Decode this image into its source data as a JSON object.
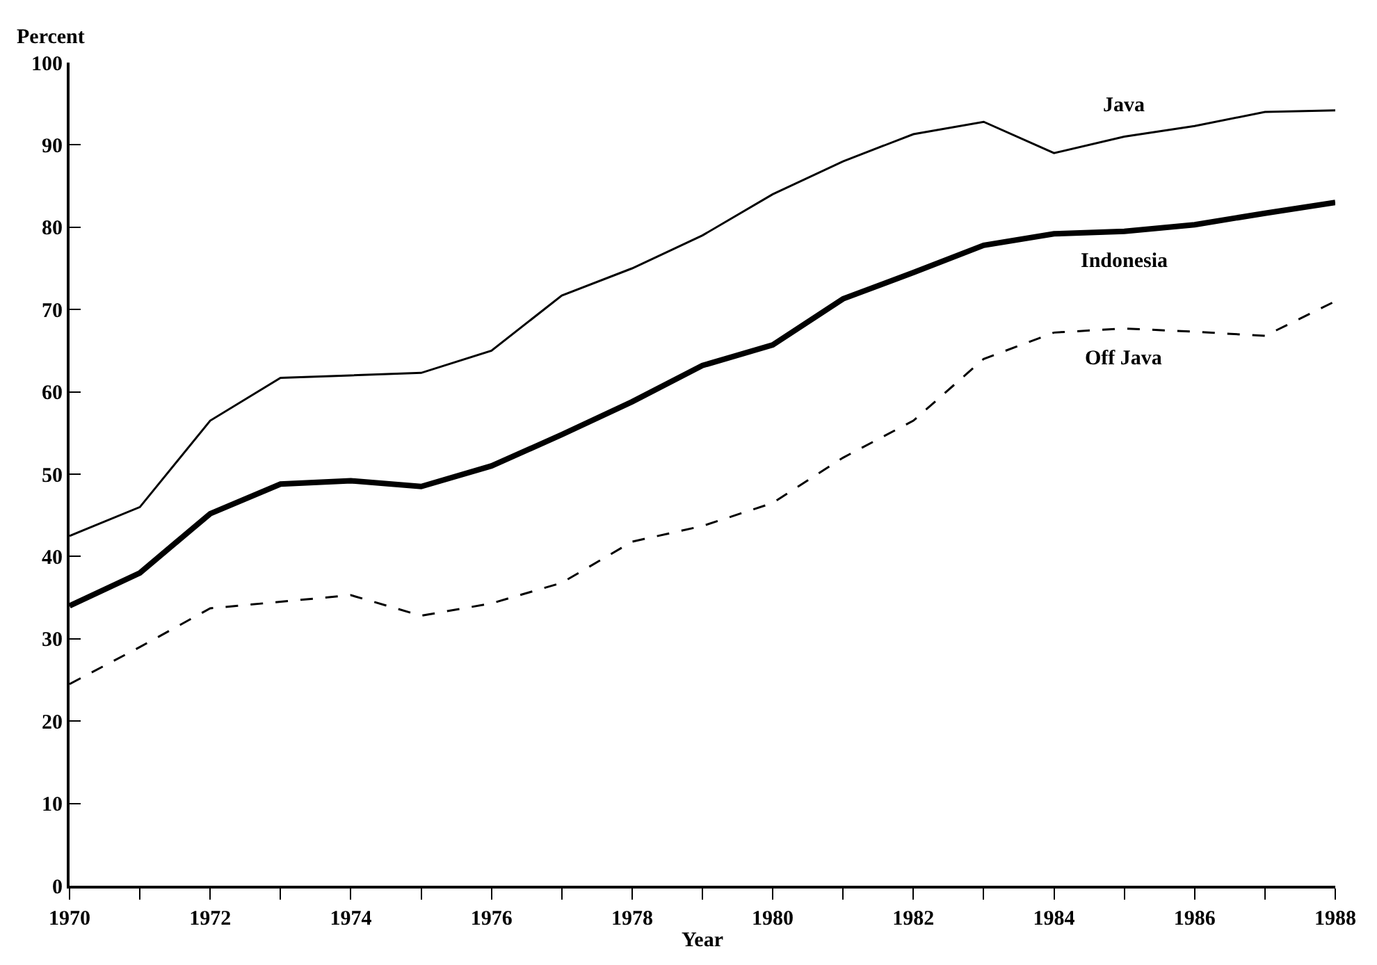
{
  "chart_data": {
    "type": "line",
    "xlabel": "Year",
    "ylabel": "Percent",
    "x": [
      1970,
      1971,
      1972,
      1973,
      1974,
      1975,
      1976,
      1977,
      1978,
      1979,
      1980,
      1981,
      1982,
      1983,
      1984,
      1985,
      1986,
      1987,
      1988
    ],
    "series": [
      {
        "name": "Java",
        "color": "#000000",
        "line_style": "solid",
        "values": [
          42.5,
          46,
          56.5,
          61.7,
          62,
          62.3,
          65,
          71.7,
          75,
          79,
          84,
          88,
          91.3,
          92.8,
          89,
          91,
          92.3,
          94,
          94.2
        ]
      },
      {
        "name": "Indonesia",
        "color": "#000000",
        "line_style": "solid",
        "values": [
          34,
          38,
          45.2,
          48.8,
          49.2,
          48.5,
          51,
          54.8,
          58.8,
          63.2,
          65.7,
          71.3,
          74.5,
          77.8,
          79.2,
          79.5,
          80.3,
          81.7,
          83
        ]
      },
      {
        "name": "Off Java",
        "color": "#000000",
        "line_style": "dashed",
        "values": [
          24.5,
          29,
          33.7,
          34.5,
          35.3,
          32.8,
          34.3,
          36.8,
          41.8,
          43.7,
          46.5,
          52,
          56.5,
          64,
          67.2,
          67.7,
          67.3,
          66.8,
          71
        ]
      }
    ],
    "xlim": [
      1970,
      1988
    ],
    "xticks": [
      1970,
      1972,
      1974,
      1976,
      1978,
      1980,
      1982,
      1984,
      1986,
      1988
    ],
    "ylim": [
      0,
      100
    ],
    "yticks": [
      0,
      10,
      20,
      30,
      40,
      50,
      60,
      70,
      80,
      90,
      100
    ],
    "legend": false,
    "marker": "none"
  }
}
